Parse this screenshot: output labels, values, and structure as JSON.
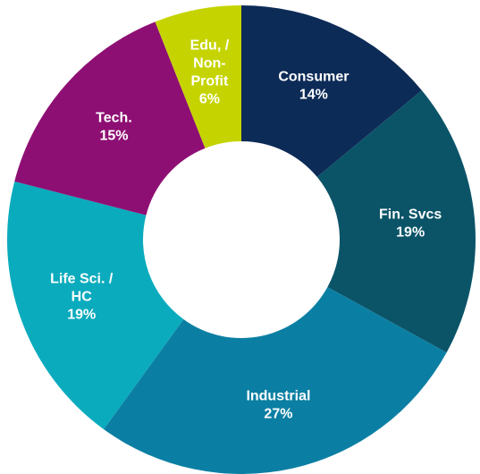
{
  "chart_data": {
    "type": "donut",
    "categories": [
      [
        "Consumer"
      ],
      [
        "Fin. Svcs"
      ],
      [
        "Industrial"
      ],
      [
        "Life Sci. /",
        "HC"
      ],
      [
        "Tech."
      ],
      [
        "Edu, /",
        "Non-",
        "Profit"
      ]
    ],
    "values": [
      14,
      19,
      27,
      19,
      15,
      6
    ],
    "value_labels": [
      "14%",
      "19%",
      "27%",
      "19%",
      "15%",
      "6%"
    ],
    "colors": [
      "#0d2b57",
      "#0b5468",
      "#0b7fa3",
      "#0aabbd",
      "#8e0f73",
      "#c5d400"
    ]
  }
}
